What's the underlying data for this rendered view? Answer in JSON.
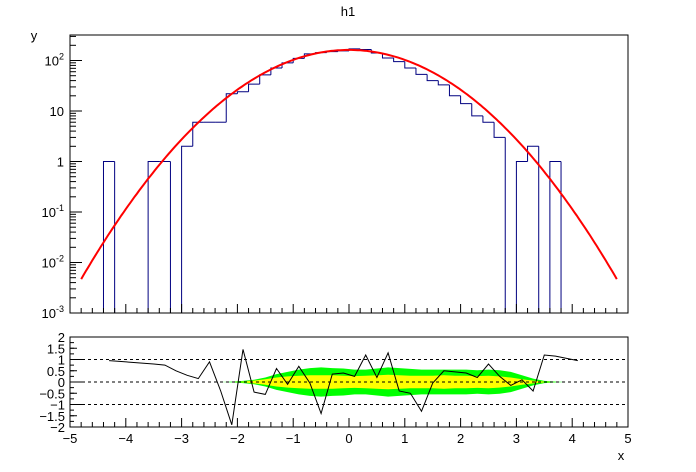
{
  "title": "h1",
  "colors": {
    "histogram": "#000080",
    "fit": "#ff0000",
    "band_2sigma": "#00ff00",
    "band_1sigma": "#ffff00",
    "residual": "#000000"
  },
  "chart_data": [
    {
      "name": "histogram-with-fit",
      "type": "bar",
      "title": "h1",
      "xlabel": "",
      "ylabel": "y",
      "ylog": true,
      "xlim": [
        -5,
        5
      ],
      "ylim": [
        0.001,
        320
      ],
      "ytick_labels": [
        "10^{-3}",
        "10^{-2}",
        "10^{-1}",
        "1",
        "10",
        "10^{2}"
      ],
      "bin_edges": [
        -5.0,
        -4.8,
        -4.6,
        -4.4,
        -4.2,
        -4.0,
        -3.8,
        -3.6,
        -3.4,
        -3.2,
        -3.0,
        -2.8,
        -2.6,
        -2.4,
        -2.2,
        -2.0,
        -1.8,
        -1.6,
        -1.4,
        -1.2,
        -1.0,
        -0.8,
        -0.6,
        -0.4,
        -0.2,
        0.0,
        0.2,
        0.4,
        0.6,
        0.8,
        1.0,
        1.2,
        1.4,
        1.6,
        1.8,
        2.0,
        2.2,
        2.4,
        2.6,
        2.8,
        3.0,
        3.2,
        3.4,
        3.6,
        3.8,
        4.0,
        4.2,
        4.4,
        4.6,
        4.8,
        5.0
      ],
      "counts": [
        0,
        0,
        0,
        1,
        0,
        0,
        0,
        1,
        1,
        0,
        2,
        6,
        6,
        6,
        22,
        24,
        34,
        52,
        71,
        90,
        110,
        135,
        143,
        150,
        155,
        170,
        165,
        141,
        112,
        95,
        71,
        53,
        40,
        33,
        20,
        14,
        8,
        6,
        3,
        0,
        1,
        2,
        0,
        1,
        0,
        0,
        0,
        0,
        0,
        0
      ],
      "fit": {
        "name": "gaus",
        "constant": 162,
        "mean": 0.0,
        "sigma": 1.05,
        "xrange": [
          -4.8,
          4.8
        ]
      }
    },
    {
      "name": "residuals",
      "type": "line",
      "xlabel": "x",
      "ylabel": "",
      "xlim": [
        -5,
        5
      ],
      "ylim": [
        -2,
        2
      ],
      "xticks": [
        -5,
        -4,
        -3,
        -2,
        -1,
        0,
        1,
        2,
        3,
        4,
        5
      ],
      "yticks": [
        -2,
        -1.5,
        -1,
        -0.5,
        0,
        0.5,
        1,
        1.5,
        2
      ],
      "reference_lines": [
        -1,
        0,
        1
      ],
      "x": [
        -4.3,
        -3.5,
        -3.3,
        -3.1,
        -2.9,
        -2.7,
        -2.5,
        -2.3,
        -2.1,
        -1.9,
        -1.7,
        -1.5,
        -1.3,
        -1.1,
        -0.9,
        -0.7,
        -0.5,
        -0.3,
        -0.1,
        0.1,
        0.3,
        0.5,
        0.7,
        0.9,
        1.1,
        1.3,
        1.5,
        1.7,
        1.9,
        2.1,
        2.3,
        2.5,
        2.7,
        2.9,
        3.1,
        3.3,
        3.5,
        3.7,
        3.9,
        4.1
      ],
      "y": [
        0.95,
        0.8,
        0.75,
        0.5,
        0.3,
        0.15,
        0.9,
        -0.4,
        -1.9,
        1.45,
        -0.45,
        -0.55,
        0.6,
        -0.1,
        0.7,
        -0.05,
        -1.4,
        0.35,
        0.4,
        0.25,
        1.2,
        0.2,
        1.3,
        -0.4,
        -0.5,
        -1.3,
        -0.05,
        0.5,
        0.45,
        0.4,
        0.2,
        0.8,
        0.25,
        -0.15,
        0.1,
        -0.4,
        1.2,
        1.15,
        1.05,
        0.95
      ],
      "band_1sigma_halfwidth": [
        0,
        0,
        0,
        0,
        0,
        0,
        0,
        0,
        0,
        0.02,
        0.06,
        0.12,
        0.2,
        0.25,
        0.28,
        0.3,
        0.3,
        0.3,
        0.28,
        0.26,
        0.28,
        0.3,
        0.32,
        0.3,
        0.28,
        0.28,
        0.28,
        0.3,
        0.28,
        0.28,
        0.26,
        0.28,
        0.25,
        0.2,
        0.12,
        0.06,
        0.02,
        0,
        0,
        0
      ],
      "band_2sigma_halfwidth": [
        0,
        0,
        0,
        0,
        0,
        0,
        0,
        0,
        0.02,
        0.05,
        0.1,
        0.2,
        0.35,
        0.45,
        0.55,
        0.62,
        0.65,
        0.62,
        0.6,
        0.55,
        0.55,
        0.6,
        0.65,
        0.62,
        0.58,
        0.55,
        0.55,
        0.55,
        0.55,
        0.55,
        0.52,
        0.55,
        0.52,
        0.45,
        0.3,
        0.15,
        0.05,
        0.02,
        0,
        0
      ]
    }
  ]
}
